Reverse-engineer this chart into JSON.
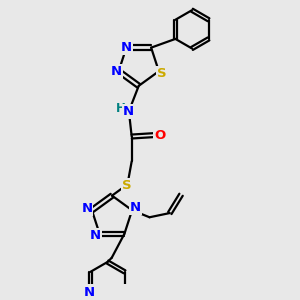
{
  "background_color": "#e8e8e8",
  "bond_color": "#000000",
  "atom_colors": {
    "N": "#0000ff",
    "S": "#ccaa00",
    "O": "#ff0000",
    "H": "#008080",
    "C": "#000000"
  },
  "figsize": [
    3.0,
    3.0
  ],
  "dpi": 100
}
